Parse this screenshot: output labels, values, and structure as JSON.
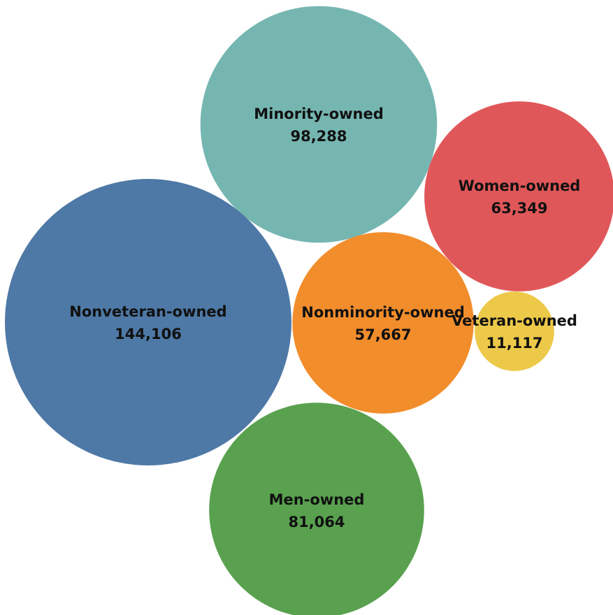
{
  "chart_data": {
    "type": "bubble",
    "title": "",
    "legend": "none",
    "series": [
      {
        "name": "Minority-owned",
        "value": 98288,
        "display": "98,288",
        "color": "#76b6b1"
      },
      {
        "name": "Women-owned",
        "value": 63349,
        "display": "63,349",
        "color": "#e05759"
      },
      {
        "name": "Nonveteran-owned",
        "value": 144106,
        "display": "144,106",
        "color": "#4e79a6"
      },
      {
        "name": "Nonminority-owned",
        "value": 57667,
        "display": "57,667",
        "color": "#f28d2c"
      },
      {
        "name": "Veteran-owned",
        "value": 11117,
        "display": "11,117",
        "color": "#edc949"
      },
      {
        "name": "Men-owned",
        "value": 81064,
        "display": "81,064",
        "color": "#59a14f"
      }
    ]
  }
}
